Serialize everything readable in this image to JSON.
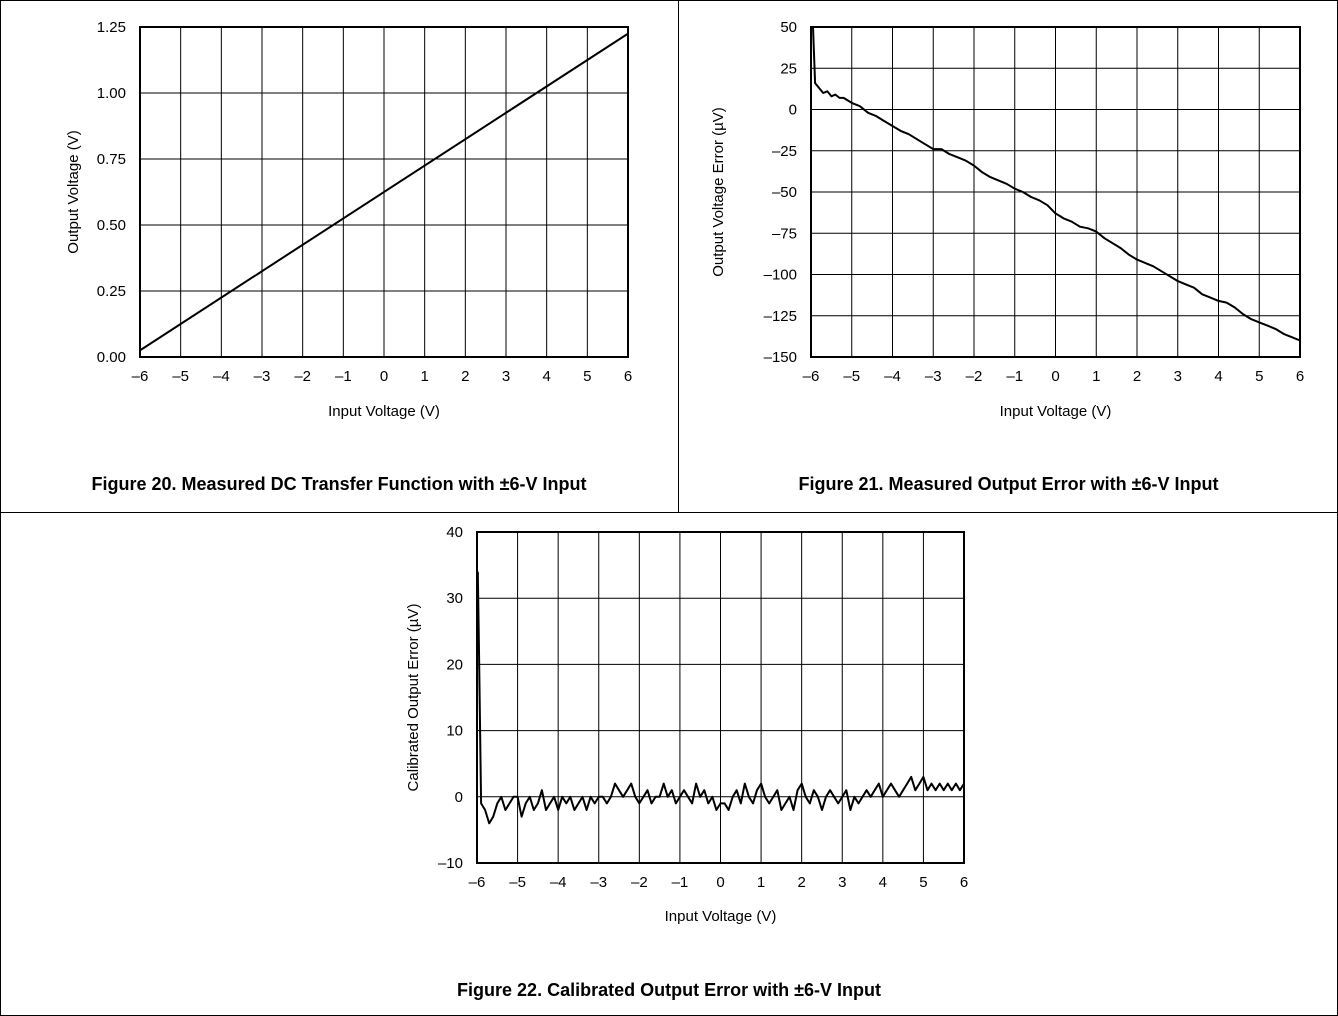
{
  "charts": {
    "fig20": {
      "caption": "Figure 20. Measured DC Transfer Function with ±6-V Input",
      "chart_data": {
        "type": "line",
        "title": "",
        "xlabel": "Input Voltage (V)",
        "ylabel": "Output Voltage (V)",
        "xlim": [
          -6,
          6
        ],
        "ylim": [
          0,
          1.25
        ],
        "x_ticks": [
          "–6",
          "–5",
          "–4",
          "–3",
          "–2",
          "–1",
          "0",
          "1",
          "2",
          "3",
          "4",
          "5",
          "6"
        ],
        "y_ticks": [
          "0.00",
          "0.25",
          "0.50",
          "0.75",
          "1.00",
          "1.25"
        ],
        "grid": true,
        "series": [
          {
            "x": [
              -6,
              6
            ],
            "y": [
              0.025,
              1.225
            ]
          }
        ]
      }
    },
    "fig21": {
      "caption": "Figure 21. Measured Output Error with ±6-V Input",
      "chart_data": {
        "type": "line",
        "title": "",
        "xlabel": "Input Voltage (V)",
        "ylabel": "Output Voltage Error (µV)",
        "xlim": [
          -6,
          6
        ],
        "ylim": [
          -150,
          50
        ],
        "x_ticks": [
          "–6",
          "–5",
          "–4",
          "–3",
          "–2",
          "–1",
          "0",
          "1",
          "2",
          "3",
          "4",
          "5",
          "6"
        ],
        "y_ticks": [
          "–150",
          "–125",
          "–100",
          "–75",
          "–50",
          "–25",
          "0",
          "25",
          "50"
        ],
        "grid": true,
        "series": [
          {
            "x": [
              -5.95,
              -5.9,
              -5.8,
              -5.7,
              -5.6,
              -5.5,
              -5.4,
              -5.3,
              -5.2,
              -5.0,
              -4.8,
              -4.6,
              -4.4,
              -4.2,
              -4.0,
              -3.8,
              -3.6,
              -3.4,
              -3.2,
              -3.0,
              -2.8,
              -2.6,
              -2.4,
              -2.2,
              -2.0,
              -1.8,
              -1.6,
              -1.4,
              -1.2,
              -1.0,
              -0.8,
              -0.6,
              -0.4,
              -0.2,
              0.0,
              0.2,
              0.4,
              0.6,
              0.8,
              1.0,
              1.2,
              1.4,
              1.6,
              1.8,
              2.0,
              2.2,
              2.4,
              2.6,
              2.8,
              3.0,
              3.2,
              3.4,
              3.6,
              3.8,
              4.0,
              4.2,
              4.4,
              4.6,
              4.8,
              5.0,
              5.2,
              5.4,
              5.6,
              5.8,
              6.0
            ],
            "y": [
              50,
              16,
              13,
              10,
              11,
              8,
              9,
              7,
              7,
              4,
              2,
              -2,
              -4,
              -7,
              -10,
              -13,
              -15,
              -18,
              -21,
              -24,
              -24,
              -27,
              -29,
              -31,
              -34,
              -38,
              -41,
              -43,
              -45,
              -48,
              -50,
              -53,
              -55,
              -58,
              -63,
              -66,
              -68,
              -71,
              -72,
              -74,
              -78,
              -81,
              -84,
              -88,
              -91,
              -93,
              -95,
              -98,
              -101,
              -104,
              -106,
              -108,
              -112,
              -114,
              -116,
              -117,
              -120,
              -124,
              -127,
              -129,
              -131,
              -133,
              -136,
              -138,
              -140
            ]
          }
        ]
      }
    },
    "fig22": {
      "caption": "Figure 22. Calibrated Output Error with ±6-V Input",
      "chart_data": {
        "type": "line",
        "title": "",
        "xlabel": "Input Voltage (V)",
        "ylabel": "Calibrated Output Error (µV)",
        "xlim": [
          -6,
          6
        ],
        "ylim": [
          -10,
          40
        ],
        "x_ticks": [
          "–6",
          "–5",
          "–4",
          "–3",
          "–2",
          "–1",
          "0",
          "1",
          "2",
          "3",
          "4",
          "5",
          "6"
        ],
        "y_ticks": [
          "–10",
          "0",
          "10",
          "20",
          "30",
          "40"
        ],
        "grid": true,
        "series": [
          {
            "x": [
              -5.98,
              -5.95,
              -5.9,
              -5.8,
              -5.7,
              -5.6,
              -5.5,
              -5.4,
              -5.3,
              -5.2,
              -5.1,
              -5.0,
              -4.9,
              -4.8,
              -4.7,
              -4.6,
              -4.5,
              -4.4,
              -4.3,
              -4.2,
              -4.1,
              -4.0,
              -3.9,
              -3.8,
              -3.7,
              -3.6,
              -3.5,
              -3.4,
              -3.3,
              -3.2,
              -3.1,
              -3.0,
              -2.9,
              -2.8,
              -2.7,
              -2.6,
              -2.5,
              -2.4,
              -2.3,
              -2.2,
              -2.1,
              -2.0,
              -1.9,
              -1.8,
              -1.7,
              -1.6,
              -1.5,
              -1.4,
              -1.3,
              -1.2,
              -1.1,
              -1.0,
              -0.9,
              -0.8,
              -0.7,
              -0.6,
              -0.5,
              -0.4,
              -0.3,
              -0.2,
              -0.1,
              0.0,
              0.1,
              0.2,
              0.3,
              0.4,
              0.5,
              0.6,
              0.7,
              0.8,
              0.9,
              1.0,
              1.1,
              1.2,
              1.3,
              1.4,
              1.5,
              1.6,
              1.7,
              1.8,
              1.9,
              2.0,
              2.1,
              2.2,
              2.3,
              2.4,
              2.5,
              2.6,
              2.7,
              2.8,
              2.9,
              3.0,
              3.1,
              3.2,
              3.3,
              3.4,
              3.5,
              3.6,
              3.7,
              3.8,
              3.9,
              4.0,
              4.1,
              4.2,
              4.3,
              4.4,
              4.5,
              4.6,
              4.7,
              4.8,
              4.9,
              5.0,
              5.1,
              5.2,
              5.3,
              5.4,
              5.5,
              5.6,
              5.7,
              5.8,
              5.9,
              6.0
            ],
            "y": [
              34,
              22,
              -1,
              -2,
              -4,
              -3,
              -1,
              0,
              -2,
              -1,
              0,
              0,
              -3,
              -1,
              0,
              -2,
              -1,
              1,
              -2,
              -1,
              0,
              -2,
              0,
              -1,
              0,
              -2,
              -1,
              0,
              -2,
              0,
              -1,
              0,
              0,
              -1,
              0,
              2,
              1,
              0,
              1,
              2,
              0,
              -1,
              0,
              1,
              -1,
              0,
              0,
              2,
              0,
              1,
              -1,
              0,
              1,
              0,
              -1,
              2,
              0,
              1,
              -1,
              0,
              -2,
              -1,
              -1,
              -2,
              0,
              1,
              -1,
              2,
              0,
              -1,
              1,
              2,
              0,
              -1,
              0,
              1,
              -2,
              -1,
              0,
              -2,
              1,
              2,
              0,
              -1,
              1,
              0,
              -2,
              0,
              1,
              0,
              -1,
              0,
              1,
              -2,
              0,
              -1,
              0,
              1,
              0,
              1,
              2,
              0,
              1,
              2,
              1,
              0,
              1,
              2,
              3,
              1,
              2,
              3,
              1,
              2,
              1,
              2,
              1,
              2,
              1,
              2,
              1,
              2
            ]
          }
        ]
      }
    }
  }
}
